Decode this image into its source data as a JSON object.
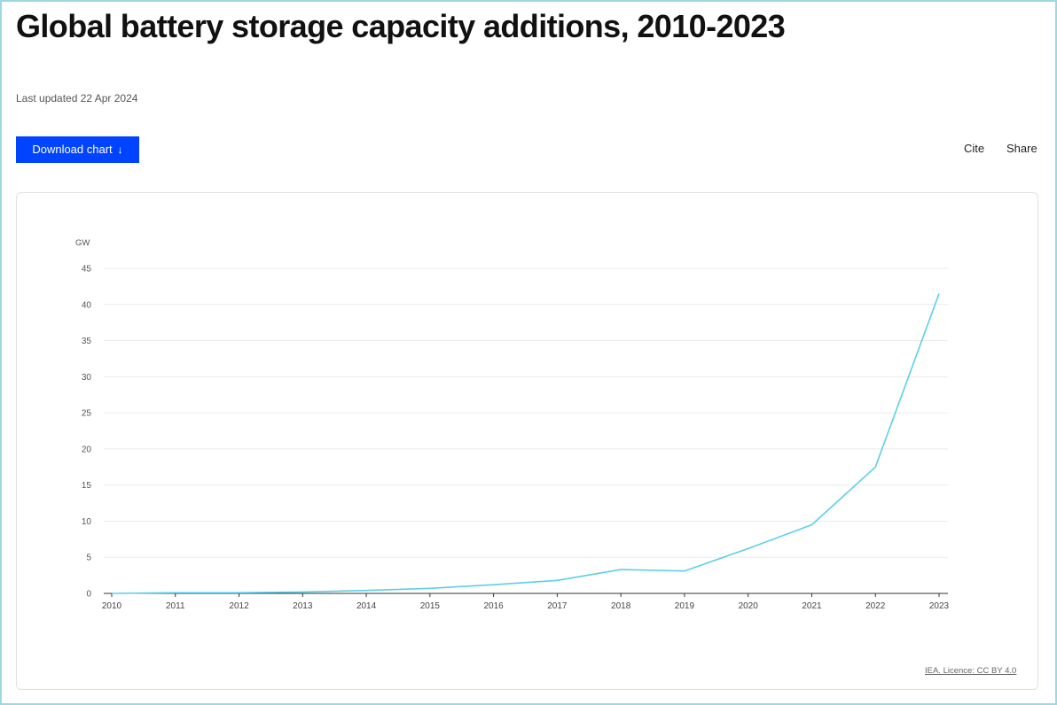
{
  "page": {
    "title": "Global battery storage capacity additions, 2010-2023",
    "last_updated": "Last updated 22 Apr 2024",
    "download_label": "Download chart",
    "cite_label": "Cite",
    "share_label": "Share",
    "licence": "IEA. Licence: CC BY 4.0"
  },
  "colors": {
    "line": "#5bcfe8",
    "accent": "#0044ff",
    "grid": "#ebebeb",
    "axis": "#333333"
  },
  "chart_data": {
    "type": "line",
    "title": "Global battery storage capacity additions, 2010-2023",
    "xlabel": "",
    "ylabel": "GW",
    "x": [
      "2010",
      "2011",
      "2012",
      "2013",
      "2014",
      "2015",
      "2016",
      "2017",
      "2018",
      "2019",
      "2020",
      "2021",
      "2022",
      "2023"
    ],
    "series": [
      {
        "name": "Battery storage capacity additions",
        "values": [
          0.0,
          0.1,
          0.1,
          0.2,
          0.4,
          0.7,
          1.2,
          1.8,
          3.3,
          3.1,
          6.2,
          9.5,
          17.5,
          41.5
        ]
      }
    ],
    "yticks": [
      0,
      5,
      10,
      15,
      20,
      25,
      30,
      35,
      40,
      45
    ],
    "ylim": [
      0,
      45
    ],
    "grid": true,
    "legend": "none"
  }
}
